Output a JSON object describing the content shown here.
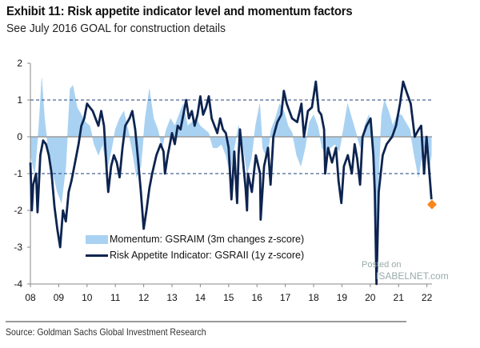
{
  "title": "Exhibit 11: Risk appetite indicator level and momentum factors",
  "subtitle": "See July 2016 GOAL for construction details",
  "source": "Source: Goldman Sachs Global Investment Research",
  "watermark": {
    "line1": "Posted on",
    "line2": "ISABELNET.com"
  },
  "colors": {
    "momentum": "#a9d2f2",
    "indicator": "#0d2450",
    "latest_marker": "#f7861b",
    "reference_lines": "#1f3f7a",
    "zero_line": "#9a9a9a"
  },
  "chart_data": {
    "type": "line",
    "xlim": [
      2008,
      2022.5
    ],
    "ylim": [
      -4,
      2
    ],
    "x_ticks": [
      {
        "value": 2008,
        "label": "08"
      },
      {
        "value": 2009,
        "label": "09"
      },
      {
        "value": 2010,
        "label": "10"
      },
      {
        "value": 2011,
        "label": "11"
      },
      {
        "value": 2012,
        "label": "12"
      },
      {
        "value": 2013,
        "label": "13"
      },
      {
        "value": 2014,
        "label": "14"
      },
      {
        "value": 2015,
        "label": "15"
      },
      {
        "value": 2016,
        "label": "16"
      },
      {
        "value": 2017,
        "label": "17"
      },
      {
        "value": 2018,
        "label": "18"
      },
      {
        "value": 2019,
        "label": "19"
      },
      {
        "value": 2020,
        "label": "20"
      },
      {
        "value": 2021,
        "label": "21"
      },
      {
        "value": 2022,
        "label": "22"
      }
    ],
    "y_ticks": [
      2,
      1,
      0,
      -1,
      -2,
      -3,
      -4
    ],
    "reference_lines": [
      1,
      -1
    ],
    "legend_placement": "bottom-center",
    "series": [
      {
        "name": "Momentum: GSRAIM (3m changes z-score)",
        "style": "area",
        "points": [
          [
            2008.0,
            -0.5
          ],
          [
            2008.15,
            -1.0
          ],
          [
            2008.3,
            0.3
          ],
          [
            2008.4,
            1.6
          ],
          [
            2008.5,
            0.5
          ],
          [
            2008.65,
            -0.5
          ],
          [
            2008.8,
            -1.0
          ],
          [
            2008.95,
            -1.5
          ],
          [
            2009.1,
            -1.8
          ],
          [
            2009.25,
            -0.8
          ],
          [
            2009.4,
            1.3
          ],
          [
            2009.5,
            1.4
          ],
          [
            2009.65,
            0.8
          ],
          [
            2009.8,
            0.6
          ],
          [
            2009.95,
            0.4
          ],
          [
            2010.1,
            0.3
          ],
          [
            2010.25,
            -0.2
          ],
          [
            2010.4,
            -0.5
          ],
          [
            2010.55,
            -0.2
          ],
          [
            2010.7,
            -0.9
          ],
          [
            2010.85,
            -0.4
          ],
          [
            2011.0,
            0.2
          ],
          [
            2011.15,
            0.5
          ],
          [
            2011.3,
            0.7
          ],
          [
            2011.45,
            0.2
          ],
          [
            2011.6,
            -0.4
          ],
          [
            2011.75,
            -1.1
          ],
          [
            2011.9,
            -0.8
          ],
          [
            2012.05,
            0.5
          ],
          [
            2012.2,
            1.3
          ],
          [
            2012.35,
            0.5
          ],
          [
            2012.5,
            0.2
          ],
          [
            2012.65,
            -0.3
          ],
          [
            2012.8,
            0.2
          ],
          [
            2012.95,
            0.5
          ],
          [
            2013.1,
            0.3
          ],
          [
            2013.25,
            0.6
          ],
          [
            2013.4,
            0.9
          ],
          [
            2013.55,
            0.3
          ],
          [
            2013.7,
            0.4
          ],
          [
            2013.85,
            0.5
          ],
          [
            2014.0,
            0.3
          ],
          [
            2014.15,
            0.2
          ],
          [
            2014.3,
            0.1
          ],
          [
            2014.45,
            -0.3
          ],
          [
            2014.6,
            -0.3
          ],
          [
            2014.75,
            -0.2
          ],
          [
            2014.9,
            -0.5
          ],
          [
            2015.05,
            -1.0
          ],
          [
            2015.2,
            -0.3
          ],
          [
            2015.35,
            0.3
          ],
          [
            2015.5,
            -0.2
          ],
          [
            2015.65,
            -1.0
          ],
          [
            2015.8,
            -0.6
          ],
          [
            2015.95,
            0.3
          ],
          [
            2016.1,
            0.9
          ],
          [
            2016.2,
            -0.3
          ],
          [
            2016.35,
            -0.6
          ],
          [
            2016.5,
            0.2
          ],
          [
            2016.65,
            0.5
          ],
          [
            2016.8,
            0.9
          ],
          [
            2016.95,
            0.7
          ],
          [
            2017.1,
            0.3
          ],
          [
            2017.25,
            0.1
          ],
          [
            2017.4,
            -0.5
          ],
          [
            2017.55,
            -0.8
          ],
          [
            2017.7,
            -0.3
          ],
          [
            2017.85,
            0.4
          ],
          [
            2018.0,
            0.6
          ],
          [
            2018.15,
            0.3
          ],
          [
            2018.3,
            -0.3
          ],
          [
            2018.45,
            -0.5
          ],
          [
            2018.6,
            -0.3
          ],
          [
            2018.75,
            -0.2
          ],
          [
            2018.9,
            -0.4
          ],
          [
            2019.05,
            0.2
          ],
          [
            2019.2,
            0.9
          ],
          [
            2019.35,
            0.5
          ],
          [
            2019.5,
            0.1
          ],
          [
            2019.65,
            -0.3
          ],
          [
            2019.8,
            0.3
          ],
          [
            2019.95,
            0.6
          ],
          [
            2020.1,
            -0.5
          ],
          [
            2020.2,
            -3.0
          ],
          [
            2020.3,
            -1.0
          ],
          [
            2020.4,
            0.6
          ],
          [
            2020.5,
            1.0
          ],
          [
            2020.65,
            0.7
          ],
          [
            2020.8,
            0.3
          ],
          [
            2020.95,
            0.6
          ],
          [
            2021.1,
            0.6
          ],
          [
            2021.25,
            0.4
          ],
          [
            2021.4,
            0.2
          ],
          [
            2021.55,
            -0.5
          ],
          [
            2021.7,
            -1.1
          ],
          [
            2021.85,
            -0.4
          ],
          [
            2022.0,
            -0.2
          ],
          [
            2022.1,
            -0.8
          ],
          [
            2022.16,
            -0.5
          ]
        ]
      },
      {
        "name": "Risk Appetite Indicator: GSRAII (1y z-score)",
        "style": "line",
        "points": [
          [
            2008.0,
            -0.7
          ],
          [
            2008.05,
            -2.0
          ],
          [
            2008.1,
            -1.3
          ],
          [
            2008.2,
            -1.0
          ],
          [
            2008.25,
            -2.05
          ],
          [
            2008.35,
            -0.5
          ],
          [
            2008.45,
            -0.1
          ],
          [
            2008.55,
            -0.2
          ],
          [
            2008.65,
            -0.5
          ],
          [
            2008.75,
            -1.0
          ],
          [
            2008.85,
            -1.9
          ],
          [
            2008.95,
            -2.5
          ],
          [
            2009.05,
            -3.0
          ],
          [
            2009.15,
            -2.0
          ],
          [
            2009.25,
            -2.3
          ],
          [
            2009.35,
            -1.5
          ],
          [
            2009.45,
            -1.2
          ],
          [
            2009.55,
            -0.8
          ],
          [
            2009.7,
            -0.2
          ],
          [
            2009.8,
            0.3
          ],
          [
            2009.9,
            0.5
          ],
          [
            2010.0,
            0.9
          ],
          [
            2010.1,
            0.8
          ],
          [
            2010.2,
            0.7
          ],
          [
            2010.3,
            0.5
          ],
          [
            2010.4,
            0.3
          ],
          [
            2010.5,
            0.7
          ],
          [
            2010.6,
            0.3
          ],
          [
            2010.7,
            -1.0
          ],
          [
            2010.75,
            -1.5
          ],
          [
            2010.85,
            -0.8
          ],
          [
            2010.95,
            -0.5
          ],
          [
            2011.05,
            -0.7
          ],
          [
            2011.15,
            -1.1
          ],
          [
            2011.25,
            -0.3
          ],
          [
            2011.35,
            0.3
          ],
          [
            2011.5,
            0.5
          ],
          [
            2011.6,
            0.7
          ],
          [
            2011.7,
            0.2
          ],
          [
            2011.8,
            -0.6
          ],
          [
            2011.9,
            -1.5
          ],
          [
            2012.0,
            -2.5
          ],
          [
            2012.1,
            -2.0
          ],
          [
            2012.2,
            -1.4
          ],
          [
            2012.3,
            -1.0
          ],
          [
            2012.45,
            -0.5
          ],
          [
            2012.6,
            -0.2
          ],
          [
            2012.7,
            -0.4
          ],
          [
            2012.75,
            -1.0
          ],
          [
            2012.85,
            -0.5
          ],
          [
            2013.0,
            0.1
          ],
          [
            2013.1,
            -0.2
          ],
          [
            2013.2,
            0.3
          ],
          [
            2013.3,
            0.2
          ],
          [
            2013.4,
            0.6
          ],
          [
            2013.5,
            1.0
          ],
          [
            2013.6,
            0.5
          ],
          [
            2013.7,
            0.7
          ],
          [
            2013.8,
            0.3
          ],
          [
            2013.9,
            0.6
          ],
          [
            2014.0,
            1.1
          ],
          [
            2014.1,
            0.6
          ],
          [
            2014.2,
            0.8
          ],
          [
            2014.3,
            1.1
          ],
          [
            2014.4,
            0.5
          ],
          [
            2014.5,
            0.3
          ],
          [
            2014.6,
            0.1
          ],
          [
            2014.7,
            0.5
          ],
          [
            2014.8,
            0.2
          ],
          [
            2014.9,
            0.1
          ],
          [
            2015.0,
            -0.3
          ],
          [
            2015.1,
            -1.7
          ],
          [
            2015.2,
            -0.4
          ],
          [
            2015.3,
            -1.8
          ],
          [
            2015.35,
            -0.5
          ],
          [
            2015.4,
            0.2
          ],
          [
            2015.5,
            -0.6
          ],
          [
            2015.6,
            -1.4
          ],
          [
            2015.65,
            -2.0
          ],
          [
            2015.68,
            -1.0
          ],
          [
            2015.82,
            -1.5
          ],
          [
            2015.96,
            -0.5
          ],
          [
            2016.11,
            -1.0
          ],
          [
            2016.13,
            -2.25
          ],
          [
            2016.25,
            -0.8
          ],
          [
            2016.39,
            -0.3
          ],
          [
            2016.48,
            -1.3
          ],
          [
            2016.58,
            0.0
          ],
          [
            2016.72,
            0.4
          ],
          [
            2016.86,
            0.6
          ],
          [
            2016.95,
            1.25
          ],
          [
            2017.05,
            0.9
          ],
          [
            2017.24,
            0.5
          ],
          [
            2017.42,
            0.4
          ],
          [
            2017.57,
            0.9
          ],
          [
            2017.66,
            0.0
          ],
          [
            2017.8,
            0.7
          ],
          [
            2017.94,
            0.8
          ],
          [
            2018.08,
            1.5
          ],
          [
            2018.18,
            0.7
          ],
          [
            2018.27,
            0.6
          ],
          [
            2018.37,
            0.2
          ],
          [
            2018.41,
            -1.0
          ],
          [
            2018.51,
            -0.3
          ],
          [
            2018.65,
            -0.7
          ],
          [
            2018.79,
            -0.3
          ],
          [
            2018.88,
            -1.2
          ],
          [
            2018.98,
            -1.8
          ],
          [
            2019.07,
            -0.8
          ],
          [
            2019.21,
            -0.5
          ],
          [
            2019.35,
            -1.0
          ],
          [
            2019.45,
            -0.2
          ],
          [
            2019.54,
            -0.6
          ],
          [
            2019.64,
            -1.3
          ],
          [
            2019.73,
            0.0
          ],
          [
            2019.87,
            0.3
          ],
          [
            2020.01,
            0.5
          ],
          [
            2020.11,
            -0.5
          ],
          [
            2020.16,
            -1.5
          ],
          [
            2020.22,
            -4.0
          ],
          [
            2020.3,
            -1.5
          ],
          [
            2020.44,
            -0.5
          ],
          [
            2020.58,
            -0.2
          ],
          [
            2020.77,
            0.0
          ],
          [
            2020.91,
            0.3
          ],
          [
            2021.05,
            0.9
          ],
          [
            2021.16,
            1.5
          ],
          [
            2021.29,
            1.2
          ],
          [
            2021.43,
            0.9
          ],
          [
            2021.57,
            0.0
          ],
          [
            2021.71,
            0.2
          ],
          [
            2021.8,
            0.3
          ],
          [
            2021.9,
            -1.0
          ],
          [
            2021.99,
            0.0
          ],
          [
            2022.09,
            -1.0
          ],
          [
            2022.16,
            -1.7
          ]
        ]
      }
    ],
    "latest_point": {
      "x": 2022.18,
      "y": -1.84
    }
  }
}
